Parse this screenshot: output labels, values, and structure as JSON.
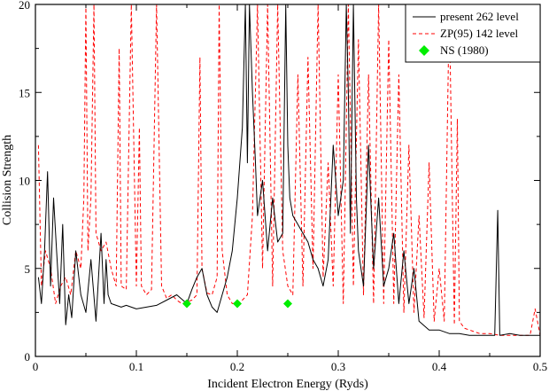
{
  "chart_data": {
    "type": "line",
    "xlabel": "Incident Electron Energy (Ryds)",
    "ylabel": "Collision Strength",
    "xlim": [
      0,
      0.5
    ],
    "ylim": [
      0,
      20
    ],
    "xticks": [
      0,
      0.1,
      0.2,
      0.3,
      0.4,
      0.5
    ],
    "xtick_labels": [
      "0",
      "0.1",
      "0.2",
      "0.3",
      "0.4",
      "0.5"
    ],
    "yticks": [
      0,
      5,
      10,
      15,
      20
    ],
    "ytick_labels": [
      "0",
      "5",
      "10",
      "15",
      "20"
    ],
    "legend_position": "top-right",
    "grid": false,
    "colors": {
      "present": "#000000",
      "zp": "#ff0000",
      "ns": "#00ee00"
    },
    "series": [
      {
        "name": "present 262 level",
        "style": "solid",
        "x": [
          0.003,
          0.006,
          0.009,
          0.012,
          0.015,
          0.018,
          0.021,
          0.024,
          0.027,
          0.03,
          0.033,
          0.036,
          0.04,
          0.045,
          0.05,
          0.055,
          0.06,
          0.065,
          0.068,
          0.07,
          0.072,
          0.075,
          0.08,
          0.085,
          0.09,
          0.095,
          0.1,
          0.11,
          0.12,
          0.13,
          0.14,
          0.15,
          0.155,
          0.16,
          0.165,
          0.17,
          0.175,
          0.18,
          0.185,
          0.19,
          0.195,
          0.2,
          0.205,
          0.208,
          0.21,
          0.212,
          0.215,
          0.218,
          0.22,
          0.225,
          0.23,
          0.235,
          0.24,
          0.245,
          0.248,
          0.25,
          0.252,
          0.255,
          0.26,
          0.265,
          0.27,
          0.275,
          0.28,
          0.285,
          0.29,
          0.295,
          0.3,
          0.305,
          0.308,
          0.31,
          0.312,
          0.315,
          0.318,
          0.32,
          0.325,
          0.33,
          0.335,
          0.34,
          0.345,
          0.35,
          0.355,
          0.36,
          0.365,
          0.37,
          0.375,
          0.38,
          0.39,
          0.4,
          0.41,
          0.42,
          0.43,
          0.44,
          0.45,
          0.455,
          0.458,
          0.46,
          0.47,
          0.48,
          0.49,
          0.5
        ],
        "y": [
          4.5,
          3.0,
          6.0,
          10.5,
          4.0,
          9.0,
          6.0,
          3.0,
          7.5,
          1.8,
          3.5,
          2.2,
          6.0,
          3.5,
          2.5,
          5.5,
          2.0,
          7.0,
          3.0,
          5.5,
          3.5,
          3.0,
          2.9,
          2.8,
          2.9,
          2.8,
          2.7,
          2.8,
          2.9,
          3.2,
          3.5,
          3.0,
          3.8,
          4.5,
          5.0,
          3.5,
          2.8,
          2.5,
          3.5,
          4.5,
          6.0,
          9.0,
          13.0,
          20.0,
          11.0,
          20.0,
          15.0,
          11.0,
          8.0,
          10.0,
          6.0,
          9.0,
          6.5,
          7.0,
          20.0,
          12.0,
          9.0,
          8.0,
          7.5,
          7.0,
          6.5,
          5.5,
          5.0,
          4.0,
          5.5,
          12.0,
          8.0,
          10.0,
          20.0,
          15.0,
          7.0,
          20.0,
          9.0,
          6.0,
          4.0,
          12.0,
          5.0,
          9.0,
          4.0,
          5.0,
          7.0,
          3.0,
          6.0,
          3.0,
          5.0,
          2.0,
          1.5,
          1.5,
          1.3,
          1.3,
          1.2,
          1.2,
          1.2,
          1.2,
          8.3,
          1.2,
          1.3,
          1.2,
          1.2,
          1.2
        ]
      },
      {
        "name": "ZP(95) 142 level",
        "style": "dashed",
        "x": [
          0.003,
          0.006,
          0.01,
          0.015,
          0.02,
          0.025,
          0.03,
          0.035,
          0.04,
          0.045,
          0.048,
          0.05,
          0.052,
          0.055,
          0.058,
          0.06,
          0.065,
          0.07,
          0.075,
          0.08,
          0.083,
          0.085,
          0.09,
          0.095,
          0.1,
          0.103,
          0.105,
          0.11,
          0.115,
          0.12,
          0.125,
          0.13,
          0.135,
          0.14,
          0.145,
          0.15,
          0.155,
          0.16,
          0.163,
          0.165,
          0.17,
          0.175,
          0.18,
          0.182,
          0.185,
          0.19,
          0.195,
          0.2,
          0.205,
          0.21,
          0.215,
          0.22,
          0.225,
          0.23,
          0.235,
          0.24,
          0.245,
          0.25,
          0.255,
          0.26,
          0.265,
          0.27,
          0.275,
          0.28,
          0.285,
          0.29,
          0.295,
          0.3,
          0.305,
          0.31,
          0.315,
          0.32,
          0.325,
          0.33,
          0.335,
          0.34,
          0.345,
          0.35,
          0.355,
          0.36,
          0.365,
          0.37,
          0.375,
          0.38,
          0.385,
          0.39,
          0.395,
          0.4,
          0.405,
          0.41,
          0.415,
          0.418,
          0.42,
          0.425,
          0.43,
          0.44,
          0.45,
          0.46,
          0.47,
          0.48,
          0.49,
          0.495,
          0.5
        ],
        "y": [
          12.0,
          4.0,
          6.0,
          5.0,
          3.0,
          4.0,
          4.5,
          3.5,
          6.0,
          5.0,
          9.0,
          20.0,
          6.0,
          9.0,
          20.0,
          7.0,
          6.0,
          6.5,
          5.0,
          4.0,
          17.5,
          4.0,
          3.8,
          20.0,
          4.0,
          13.0,
          4.0,
          3.5,
          3.8,
          20.0,
          4.0,
          3.3,
          3.5,
          3.2,
          3.0,
          3.1,
          3.2,
          3.5,
          17.0,
          5.0,
          3.6,
          3.5,
          4.5,
          20.0,
          6.0,
          3.5,
          3.0,
          3.0,
          3.2,
          3.5,
          8.0,
          20.0,
          5.0,
          20.0,
          4.0,
          20.0,
          6.0,
          4.0,
          3.5,
          16.0,
          4.0,
          17.0,
          5.0,
          20.0,
          4.5,
          11.0,
          4.0,
          16.0,
          3.0,
          20.0,
          4.0,
          18.0,
          3.5,
          16.0,
          3.0,
          20.0,
          3.0,
          18.0,
          3.0,
          16.0,
          2.5,
          12.0,
          2.5,
          8.0,
          2.2,
          11.0,
          2.0,
          5.0,
          2.0,
          20.0,
          1.8,
          13.5,
          2.0,
          1.6,
          1.5,
          1.3,
          1.3,
          1.2,
          1.2,
          1.2,
          1.2,
          2.7,
          1.2
        ]
      },
      {
        "name": "NS (1980)",
        "style": "markers",
        "x": [
          0.15,
          0.2,
          0.25
        ],
        "y": [
          3.0,
          3.0,
          3.0
        ]
      }
    ]
  }
}
